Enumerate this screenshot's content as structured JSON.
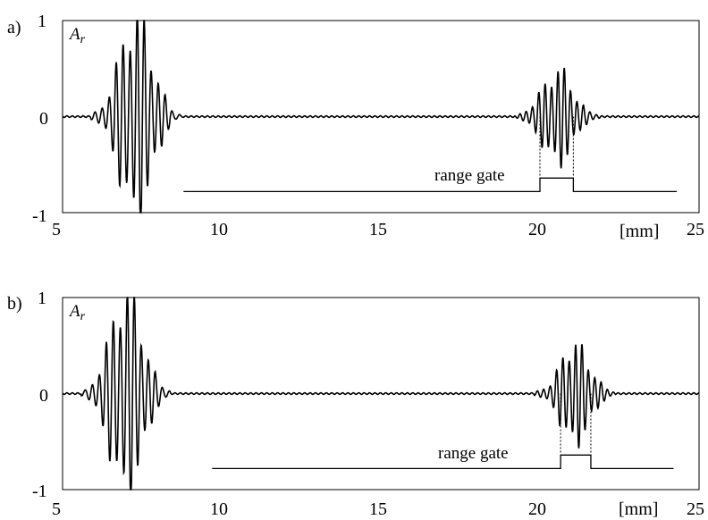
{
  "chart_data": [
    {
      "type": "line",
      "panel_label": "a)",
      "series_label": "A",
      "series_label_sub": "r",
      "xlabel": "[mm]",
      "xlim": [
        5,
        25
      ],
      "ylim": [
        -1,
        1
      ],
      "x_ticks": [
        "5",
        "10",
        "15",
        "20",
        "25"
      ],
      "y_ticks": [
        "1",
        "0",
        "-1"
      ],
      "gate_label": "range gate",
      "gate_line": {
        "x_start": 8.8,
        "x_end": 24.3,
        "gate_from": 20.0,
        "gate_to": 21.05,
        "y_base": -0.78,
        "y_high": -0.64
      },
      "packets": [
        {
          "center": 7.3,
          "halfwidth": 1.05,
          "amplitude": 0.98,
          "period": 0.22,
          "phase": 0.3
        },
        {
          "center": 20.55,
          "halfwidth": 1.0,
          "amplitude": 0.45,
          "period": 0.2,
          "phase": 1.1
        }
      ]
    },
    {
      "type": "line",
      "panel_label": "b)",
      "series_label": "A",
      "series_label_sub": "r",
      "xlabel": "[mm]",
      "xlim": [
        5,
        25
      ],
      "ylim": [
        -1,
        1
      ],
      "x_ticks": [
        "5",
        "10",
        "15",
        "20",
        "25"
      ],
      "y_ticks": [
        "1",
        "0",
        "-1"
      ],
      "gate_label": "range gate",
      "gate_line": {
        "x_start": 9.7,
        "x_end": 24.2,
        "gate_from": 20.65,
        "gate_to": 21.6,
        "y_base": -0.78,
        "y_high": -0.64
      },
      "packets": [
        {
          "center": 7.0,
          "halfwidth": 1.05,
          "amplitude": 0.98,
          "period": 0.22,
          "phase": 0.6
        },
        {
          "center": 21.1,
          "halfwidth": 0.95,
          "amplitude": 0.48,
          "period": 0.2,
          "phase": 0.9
        }
      ]
    }
  ]
}
